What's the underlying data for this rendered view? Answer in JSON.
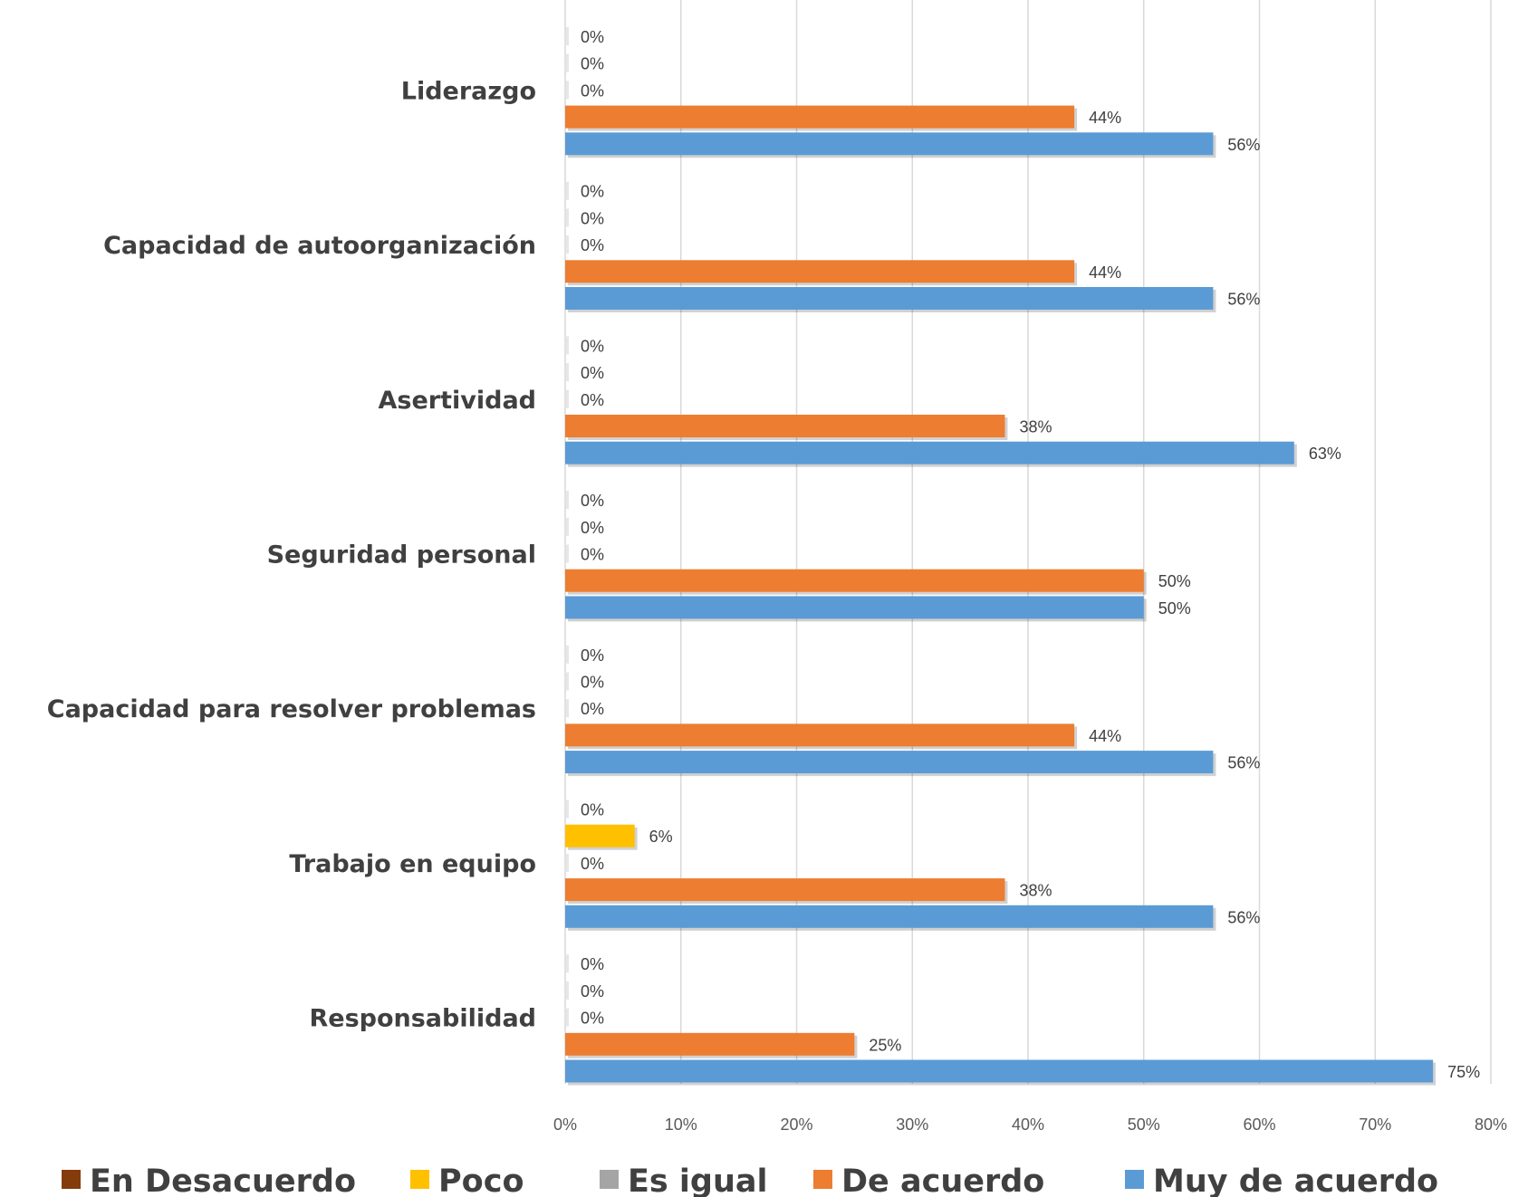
{
  "chart_data": {
    "type": "bar",
    "orientation": "horizontal",
    "title": "",
    "categories": [
      "Liderazgo",
      "Capacidad de autoorganización",
      "Asertividad",
      "Seguridad personal",
      "Capacidad para resolver problemas",
      "Trabajo en equipo",
      "Responsabilidad"
    ],
    "series": [
      {
        "name": "En Desacuerdo",
        "color": "#843C0C",
        "values": [
          0,
          0,
          0,
          0,
          0,
          0,
          0
        ],
        "labels": [
          "0%",
          "0%",
          "0%",
          "0%",
          "0%",
          "0%",
          "0%"
        ]
      },
      {
        "name": "Poco",
        "color": "#FFC000",
        "values": [
          0,
          0,
          0,
          0,
          0,
          6,
          0
        ],
        "labels": [
          "0%",
          "0%",
          "0%",
          "0%",
          "0%",
          "6%",
          "0%"
        ]
      },
      {
        "name": "Es igual",
        "color": "#A5A5A5",
        "values": [
          0,
          0,
          0,
          0,
          0,
          0,
          0
        ],
        "labels": [
          "0%",
          "0%",
          "0%",
          "0%",
          "0%",
          "0%",
          "0%"
        ]
      },
      {
        "name": "De acuerdo",
        "color": "#ED7D31",
        "values": [
          44,
          44,
          38,
          50,
          44,
          38,
          25
        ],
        "labels": [
          "44%",
          "44%",
          "38%",
          "50%",
          "44%",
          "38%",
          "25%"
        ]
      },
      {
        "name": "Muy de acuerdo",
        "color": "#5B9BD5",
        "values": [
          56,
          56,
          63,
          50,
          56,
          56,
          75
        ],
        "labels": [
          "56%",
          "56%",
          "63%",
          "50%",
          "56%",
          "56%",
          "75%"
        ]
      }
    ],
    "xlim": [
      0,
      80
    ],
    "xticks": [
      "0%",
      "10%",
      "20%",
      "30%",
      "40%",
      "50%",
      "60%",
      "70%",
      "80%"
    ],
    "grid": true,
    "legend": "bottom"
  }
}
